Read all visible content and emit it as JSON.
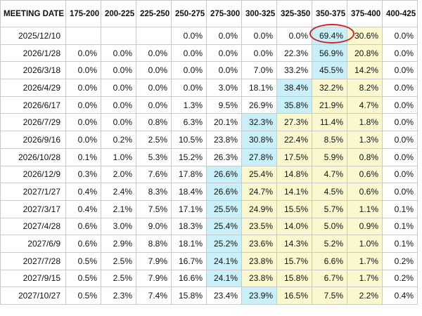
{
  "table": {
    "headers": [
      "MEETING DATE",
      "175-200",
      "200-225",
      "225-250",
      "250-275",
      "275-300",
      "300-325",
      "325-350",
      "350-375",
      "375-400",
      "400-425"
    ],
    "rows": [
      {
        "date": "2025/12/10",
        "values": [
          "",
          "",
          "",
          "0.0%",
          "0.0%",
          "0.0%",
          "0.0%",
          "69.4%",
          "30.6%",
          "0.0%"
        ],
        "highlight": [
          null,
          null,
          null,
          null,
          null,
          null,
          null,
          "cyan",
          "yellow",
          null
        ]
      },
      {
        "date": "2026/1/28",
        "values": [
          "0.0%",
          "0.0%",
          "0.0%",
          "0.0%",
          "0.0%",
          "0.0%",
          "22.3%",
          "56.9%",
          "20.8%",
          "0.0%"
        ],
        "highlight": [
          null,
          null,
          null,
          null,
          null,
          null,
          null,
          "cyan",
          "yellow",
          null
        ]
      },
      {
        "date": "2026/3/18",
        "values": [
          "0.0%",
          "0.0%",
          "0.0%",
          "0.0%",
          "0.0%",
          "7.0%",
          "33.2%",
          "45.5%",
          "14.2%",
          "0.0%"
        ],
        "highlight": [
          null,
          null,
          null,
          null,
          null,
          null,
          null,
          "cyan",
          "yellow",
          null
        ]
      },
      {
        "date": "2026/4/29",
        "values": [
          "0.0%",
          "0.0%",
          "0.0%",
          "0.0%",
          "3.0%",
          "18.1%",
          "38.4%",
          "32.2%",
          "8.2%",
          "0.0%"
        ],
        "highlight": [
          null,
          null,
          null,
          null,
          null,
          null,
          "cyan",
          "yellow",
          "yellow",
          null
        ]
      },
      {
        "date": "2026/6/17",
        "values": [
          "0.0%",
          "0.0%",
          "0.0%",
          "1.3%",
          "9.5%",
          "26.9%",
          "35.8%",
          "21.9%",
          "4.7%",
          "0.0%"
        ],
        "highlight": [
          null,
          null,
          null,
          null,
          null,
          null,
          "cyan",
          "yellow",
          "yellow",
          null
        ]
      },
      {
        "date": "2026/7/29",
        "values": [
          "0.0%",
          "0.0%",
          "0.8%",
          "6.3%",
          "20.1%",
          "32.3%",
          "27.3%",
          "11.4%",
          "1.8%",
          "0.0%"
        ],
        "highlight": [
          null,
          null,
          null,
          null,
          null,
          "cyan",
          "yellow",
          "yellow",
          "yellow",
          null
        ]
      },
      {
        "date": "2026/9/16",
        "values": [
          "0.0%",
          "0.2%",
          "2.5%",
          "10.5%",
          "23.8%",
          "30.8%",
          "22.4%",
          "8.5%",
          "1.3%",
          "0.0%"
        ],
        "highlight": [
          null,
          null,
          null,
          null,
          null,
          "cyan",
          "yellow",
          "yellow",
          "yellow",
          null
        ]
      },
      {
        "date": "2026/10/28",
        "values": [
          "0.1%",
          "1.0%",
          "5.3%",
          "15.2%",
          "26.3%",
          "27.8%",
          "17.5%",
          "5.9%",
          "0.8%",
          "0.0%"
        ],
        "highlight": [
          null,
          null,
          null,
          null,
          null,
          "cyan",
          "yellow",
          "yellow",
          "yellow",
          null
        ]
      },
      {
        "date": "2026/12/9",
        "values": [
          "0.3%",
          "2.0%",
          "7.6%",
          "17.8%",
          "26.6%",
          "25.4%",
          "14.8%",
          "4.7%",
          "0.6%",
          "0.0%"
        ],
        "highlight": [
          null,
          null,
          null,
          null,
          "cyan",
          "yellow",
          "yellow",
          "yellow",
          "yellow",
          null
        ]
      },
      {
        "date": "2027/1/27",
        "values": [
          "0.4%",
          "2.4%",
          "8.3%",
          "18.4%",
          "26.6%",
          "24.7%",
          "14.1%",
          "4.5%",
          "0.6%",
          "0.0%"
        ],
        "highlight": [
          null,
          null,
          null,
          null,
          "cyan",
          "yellow",
          "yellow",
          "yellow",
          "yellow",
          null
        ]
      },
      {
        "date": "2027/3/17",
        "values": [
          "0.4%",
          "2.1%",
          "7.5%",
          "17.1%",
          "25.5%",
          "24.9%",
          "15.5%",
          "5.7%",
          "1.1%",
          "0.1%"
        ],
        "highlight": [
          null,
          null,
          null,
          null,
          "cyan",
          "yellow",
          "yellow",
          "yellow",
          "yellow",
          null
        ]
      },
      {
        "date": "2027/4/28",
        "values": [
          "0.6%",
          "3.0%",
          "9.0%",
          "18.3%",
          "25.4%",
          "23.5%",
          "14.0%",
          "5.0%",
          "0.9%",
          "0.1%"
        ],
        "highlight": [
          null,
          null,
          null,
          null,
          "cyan",
          "yellow",
          "yellow",
          "yellow",
          "yellow",
          null
        ]
      },
      {
        "date": "2027/6/9",
        "values": [
          "0.6%",
          "2.9%",
          "8.8%",
          "18.1%",
          "25.2%",
          "23.6%",
          "14.3%",
          "5.2%",
          "1.0%",
          "0.1%"
        ],
        "highlight": [
          null,
          null,
          null,
          null,
          "cyan",
          "yellow",
          "yellow",
          "yellow",
          "yellow",
          null
        ]
      },
      {
        "date": "2027/7/28",
        "values": [
          "0.5%",
          "2.5%",
          "7.9%",
          "16.7%",
          "24.1%",
          "23.8%",
          "15.7%",
          "6.6%",
          "1.7%",
          "0.2%"
        ],
        "highlight": [
          null,
          null,
          null,
          null,
          "cyan",
          "yellow",
          "yellow",
          "yellow",
          "yellow",
          null
        ]
      },
      {
        "date": "2027/9/15",
        "values": [
          "0.5%",
          "2.5%",
          "7.9%",
          "16.6%",
          "24.1%",
          "23.8%",
          "15.8%",
          "6.7%",
          "1.7%",
          "0.2%"
        ],
        "highlight": [
          null,
          null,
          null,
          null,
          "cyan",
          "yellow",
          "yellow",
          "yellow",
          "yellow",
          null
        ]
      },
      {
        "date": "2027/10/27",
        "values": [
          "0.5%",
          "2.3%",
          "7.4%",
          "15.8%",
          "23.4%",
          "23.9%",
          "16.5%",
          "7.5%",
          "2.2%",
          "0.4%"
        ],
        "highlight": [
          null,
          null,
          null,
          null,
          null,
          "cyan",
          "yellow",
          "yellow",
          "yellow",
          null
        ]
      }
    ],
    "circled_cell": {
      "date": "2025/12/10",
      "range": "350-375",
      "value": "69.4%"
    }
  },
  "colors": {
    "cyan": "#c9eff8",
    "yellow": "#fbf8cf",
    "circle": "#c8262c",
    "border": "#c9c9c9"
  }
}
